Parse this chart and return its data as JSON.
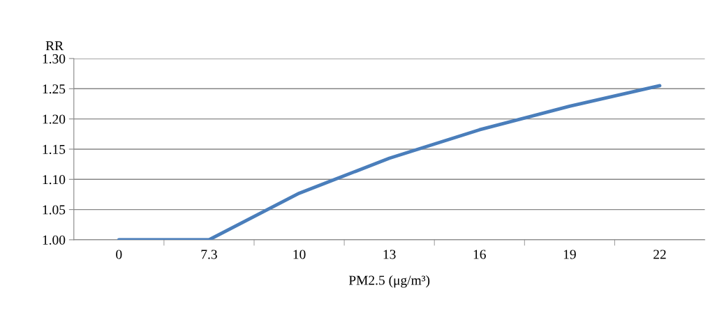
{
  "chart_data": {
    "type": "line",
    "xlabel": "PM2.5 (μg/m³)",
    "ylabel": "RR",
    "categories": [
      "0",
      "7.3",
      "10",
      "13",
      "16",
      "19",
      "22"
    ],
    "series": [
      {
        "color": "#4a7ebb",
        "values": [
          1.0,
          1.0,
          1.077,
          1.135,
          1.182,
          1.221,
          1.255
        ]
      }
    ],
    "ylim": [
      1.0,
      1.3
    ],
    "yticks": [
      {
        "value": 1.0,
        "label": "1.00"
      },
      {
        "value": 1.05,
        "label": "1.05"
      },
      {
        "value": 1.1,
        "label": "1.10"
      },
      {
        "value": 1.15,
        "label": "1.15"
      },
      {
        "value": 1.2,
        "label": "1.20"
      },
      {
        "value": 1.25,
        "label": "1.25"
      },
      {
        "value": 1.3,
        "label": "1.30"
      }
    ],
    "grid": "y",
    "marker": "none",
    "line_style": "solid"
  }
}
